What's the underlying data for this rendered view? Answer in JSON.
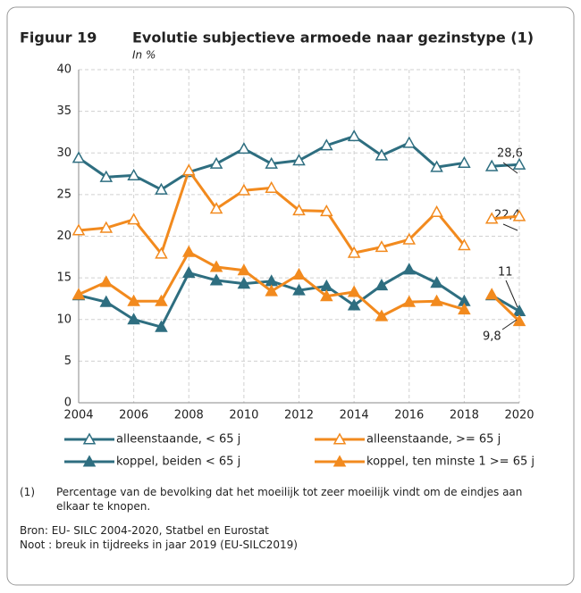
{
  "chart_data": {
    "type": "line",
    "figure_label": "Figuur 19",
    "title": "Evolutie subjectieve armoede naar gezinstype (1)",
    "subtitle": "In %",
    "x": [
      2004,
      2005,
      2006,
      2007,
      2008,
      2009,
      2010,
      2011,
      2012,
      2013,
      2014,
      2015,
      2016,
      2017,
      2018,
      2019,
      2020
    ],
    "break_before": 2019,
    "series": [
      {
        "name": "alleenstaande, < 65 j",
        "color": "#2e6e80",
        "marker": "open",
        "values": [
          29.4,
          27.1,
          27.3,
          25.6,
          27.7,
          28.7,
          30.5,
          28.7,
          29.1,
          30.9,
          32.0,
          29.7,
          31.2,
          28.3,
          28.8,
          28.4,
          28.6
        ]
      },
      {
        "name": "alleenstaande, >= 65 j",
        "color": "#f28a1e",
        "marker": "open",
        "values": [
          20.7,
          21.0,
          22.0,
          17.9,
          27.9,
          23.3,
          25.5,
          25.8,
          23.1,
          23.0,
          18.0,
          18.7,
          19.6,
          22.9,
          18.9,
          22.1,
          22.4
        ]
      },
      {
        "name": "koppel, beiden < 65 j",
        "color": "#2e6e80",
        "marker": "filled",
        "values": [
          12.9,
          12.1,
          10.0,
          9.1,
          15.6,
          14.7,
          14.3,
          14.6,
          13.5,
          14.0,
          11.7,
          14.1,
          16.0,
          14.4,
          12.2,
          12.9,
          11.0
        ]
      },
      {
        "name": "koppel, ten minste 1 >= 65 j",
        "color": "#f28a1e",
        "marker": "filled",
        "values": [
          13.0,
          14.5,
          12.2,
          12.2,
          18.1,
          16.3,
          15.9,
          13.4,
          15.4,
          12.8,
          13.3,
          10.4,
          12.1,
          12.2,
          11.2,
          13.0,
          9.8
        ]
      }
    ],
    "annotations": [
      "28,6",
      "22,4",
      "11",
      "9,8"
    ],
    "xlim": [
      2004,
      2020
    ],
    "xticks": [
      2004,
      2006,
      2008,
      2010,
      2012,
      2014,
      2016,
      2018,
      2020
    ],
    "ylim": [
      0,
      40
    ],
    "yticks": [
      0,
      5,
      10,
      15,
      20,
      25,
      30,
      35,
      40
    ],
    "grid": true,
    "footnote_marker": "(1)",
    "footnote": "Percentage van de bevolking dat het moeilijk tot zeer moeilijk vindt om de eindjes aan elkaar te knopen.",
    "source": "Bron: EU- SILC 2004-2020, Statbel en Eurostat",
    "note": "Noot : breuk in tijdreeks in jaar 2019 (EU-SILC2019)"
  }
}
